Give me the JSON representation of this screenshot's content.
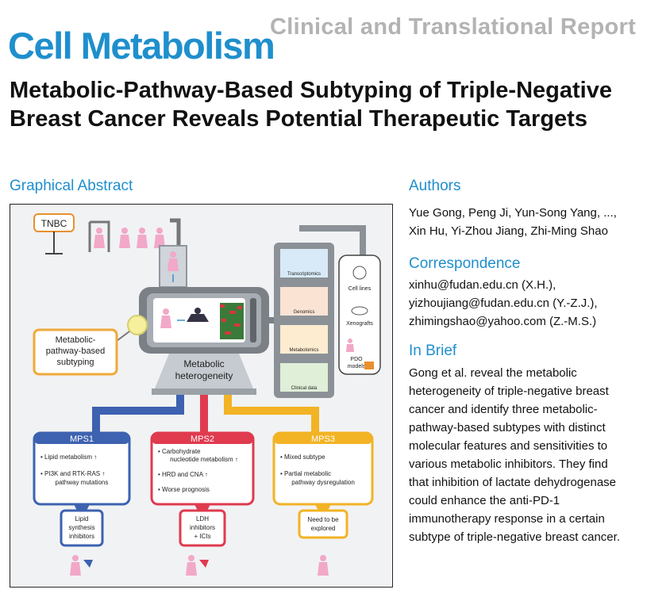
{
  "header": {
    "journal": "Cell Metabolism",
    "report_type": "Clinical and Translational Report"
  },
  "article": {
    "title": "Metabolic-Pathway-Based Subtyping of Triple-Negative Breast Cancer Reveals Potential Therapeutic Targets"
  },
  "graphical_abstract": {
    "heading": "Graphical Abstract",
    "tnbc_label": "TNBC",
    "subtyping_label_1": "Metabolic-",
    "subtyping_label_2": "pathway-based",
    "subtyping_label_3": "subtyping",
    "heterogeneity_1": "Metabolic",
    "heterogeneity_2": "heterogeneity",
    "omics": [
      "Transcriptomics",
      "Genomics",
      "Metabolomics",
      "Clinical data"
    ],
    "models": [
      "Cell lines",
      "Xenografts",
      "PDO",
      "models"
    ],
    "subtypes": [
      {
        "name": "MPS1",
        "color": "#3d62b0",
        "features": [
          "Lipid metabolism",
          "PI3K and RTK-RAS",
          "pathway mutations"
        ],
        "therapy": [
          "Lipid",
          "synthesis",
          "inhibitors"
        ]
      },
      {
        "name": "MPS2",
        "color": "#e03a4e",
        "features": [
          "Carbohydrate",
          "nucleotide metabolism",
          "HRD and CNA",
          "Worse prognosis"
        ],
        "therapy": [
          "LDH",
          "inhibitors",
          "+ ICIs"
        ]
      },
      {
        "name": "MPS3",
        "color": "#f2b324",
        "features": [
          "Mixed subtype",
          "Partial metabolic",
          "pathway dysregulation"
        ],
        "therapy": [
          "Need to be",
          "explored"
        ]
      }
    ],
    "accent_color": "#f0a93a"
  },
  "authors": {
    "heading": "Authors",
    "line1": "Yue Gong, Peng Ji, Yun-Song Yang, ...,",
    "line2": "Xin Hu, Yi-Zhou Jiang, Zhi-Ming Shao"
  },
  "correspondence": {
    "heading": "Correspondence",
    "emails": [
      "xinhu@fudan.edu.cn (X.H.),",
      "yizhoujiang@fudan.edu.cn (Y.-Z.J.),",
      "zhimingshao@yahoo.com (Z.-M.S.)"
    ]
  },
  "in_brief": {
    "heading": "In Brief",
    "lines": [
      "Gong et al. reveal the metabolic",
      "heterogeneity of triple-negative breast",
      "cancer and identify three metabolic-",
      "pathway-based subtypes with distinct",
      "molecular features and sensitivities to",
      "various metabolic inhibitors. They find",
      "that inhibition of lactate dehydrogenase",
      "could enhance the anti-PD-1",
      "immunotherapy response in a certain",
      "subtype of triple-negative breast cancer."
    ]
  }
}
